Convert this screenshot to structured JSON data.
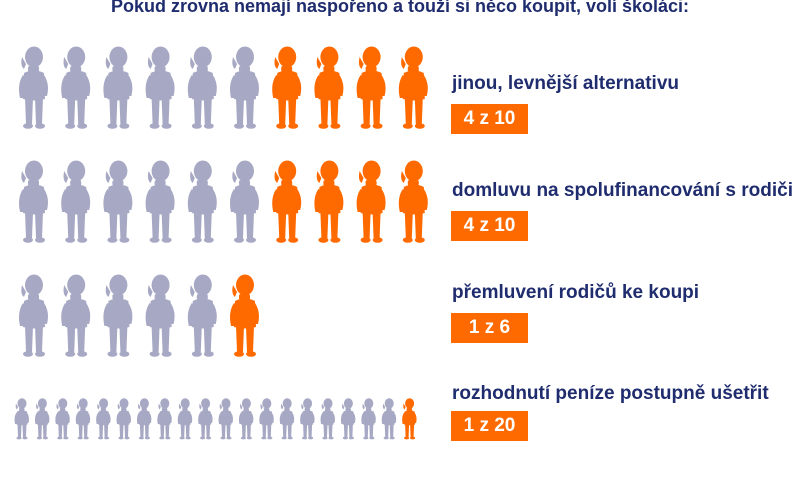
{
  "title": "Pokud zrovna nemají naspořeno a touží si něco koupit, volí školáci:",
  "colors": {
    "highlight": "#ff6a00",
    "base": "#a7a9c4",
    "text": "#1f2c6e"
  },
  "icon": "child-figure-icon",
  "chart_data": {
    "type": "pictograph",
    "rows": [
      {
        "label": "jinou, levnější alternativu",
        "ratio_text": "4 z 10",
        "numerator": 4,
        "denominator": 10
      },
      {
        "label": "domluvu na spolufinancování s rodiči",
        "ratio_text": "4 z 10",
        "numerator": 4,
        "denominator": 10
      },
      {
        "label": "přemluvení rodičů ke koupi",
        "ratio_text": "1 z 6",
        "numerator": 1,
        "denominator": 6
      },
      {
        "label": "rozhodnutí peníze postupně ušetřit",
        "ratio_text": "1 z 20",
        "numerator": 1,
        "denominator": 20
      }
    ]
  }
}
